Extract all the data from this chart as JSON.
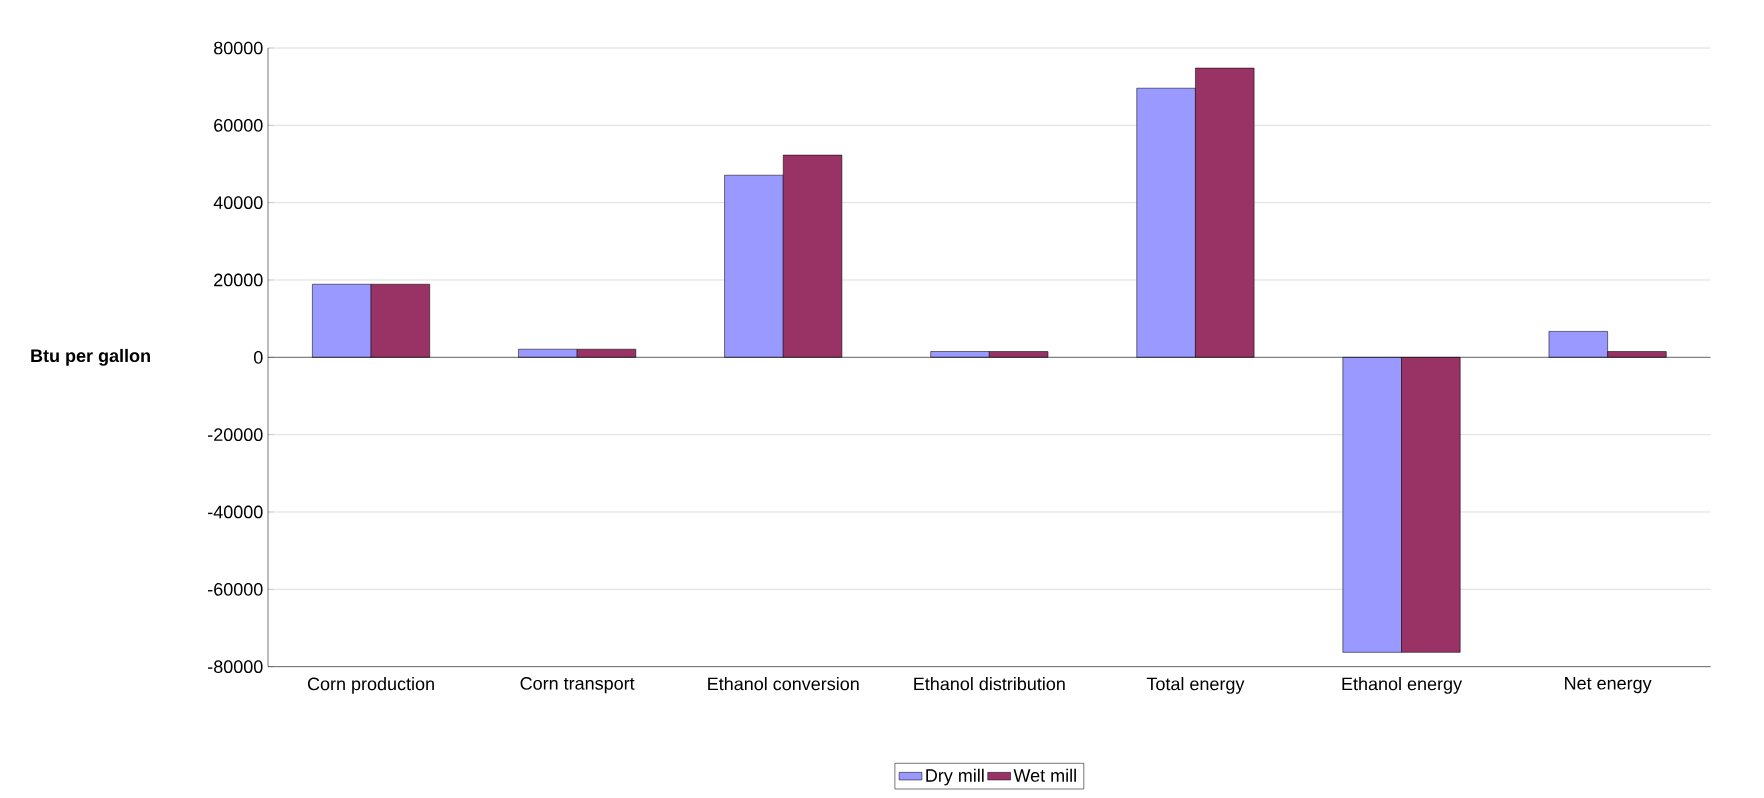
{
  "chart_data": {
    "type": "bar",
    "ylabel": "Btu per gallon",
    "categories": [
      "Corn production",
      "Corn transport",
      "Ethanol conversion",
      "Ethanol distribution",
      "Total energy",
      "Ethanol energy",
      "Net energy"
    ],
    "series": [
      {
        "name": "Dry mill",
        "color": "#9999ff",
        "values": [
          18900,
          2100,
          47100,
          1500,
          69600,
          -76300,
          6700
        ]
      },
      {
        "name": "Wet mill",
        "color": "#993366",
        "values": [
          18900,
          2100,
          52300,
          1500,
          74800,
          -76300,
          1500
        ]
      }
    ],
    "ylim": [
      -80000,
      80000
    ],
    "yticks": [
      -80000,
      -60000,
      -40000,
      -20000,
      0,
      20000,
      40000,
      60000,
      80000
    ],
    "grid": "y",
    "legend": "bottom"
  }
}
